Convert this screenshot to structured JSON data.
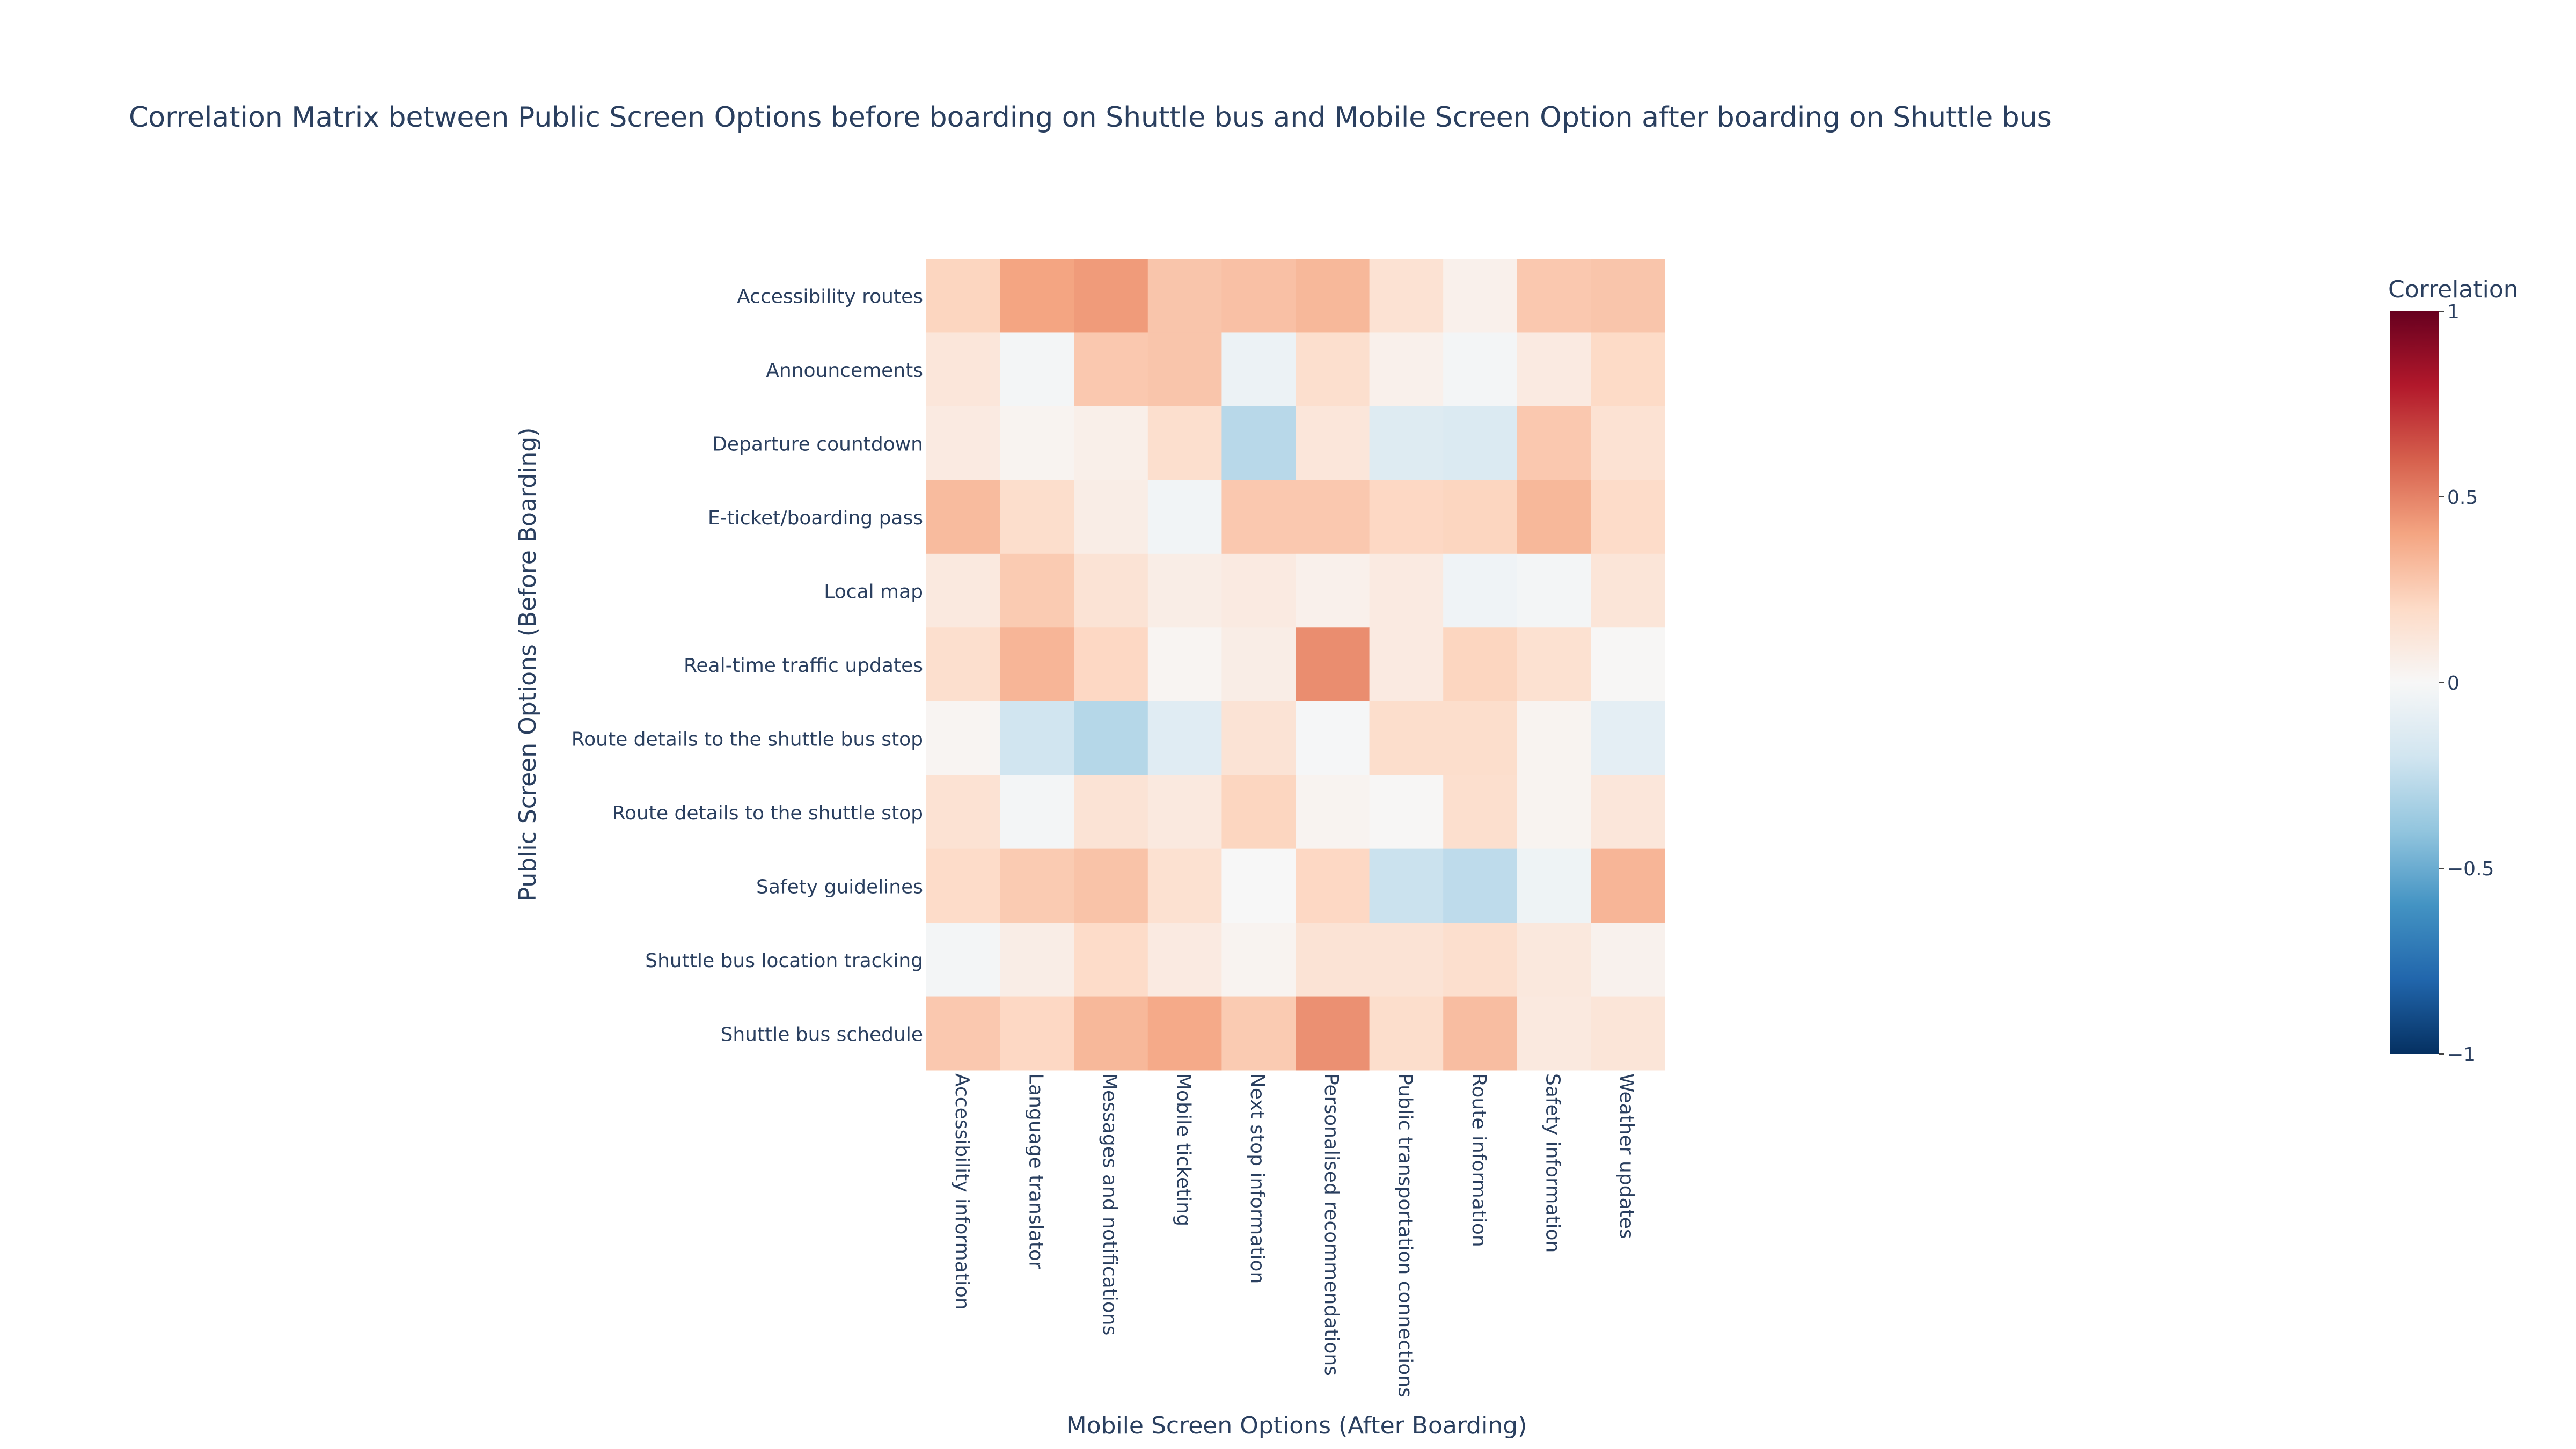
{
  "chart_data": {
    "type": "heatmap",
    "title": "Correlation Matrix between Public Screen Options before boarding on Shuttle bus and Mobile Screen Option after boarding on Shuttle bus",
    "xlabel": "Mobile Screen Options (After Boarding)",
    "ylabel": "Public Screen Options (Before Boarding)",
    "x_categories": [
      "Accessibility information",
      "Language translator",
      "Messages and notifications",
      "Mobile ticketing",
      "Next stop information",
      "Personalised recommendations",
      "Public transportation connections",
      "Route information",
      "Safety information",
      "Weather updates"
    ],
    "y_categories": [
      "Accessibility routes",
      "Announcements",
      "Departure countdown",
      "E-ticket/boarding pass",
      "Local map",
      "Real-time traffic updates",
      "Route details to the shuttle bus stop",
      "Route details to the shuttle stop",
      "Safety guidelines",
      "Shuttle bus location tracking",
      "Shuttle bus schedule"
    ],
    "values": [
      [
        0.22,
        0.4,
        0.43,
        0.28,
        0.3,
        0.33,
        0.15,
        0.05,
        0.27,
        0.28
      ],
      [
        0.12,
        -0.02,
        0.27,
        0.28,
        -0.06,
        0.17,
        0.05,
        -0.02,
        0.09,
        0.2
      ],
      [
        0.09,
        0.03,
        0.06,
        0.17,
        -0.28,
        0.12,
        -0.13,
        -0.15,
        0.27,
        0.15
      ],
      [
        0.32,
        0.18,
        0.07,
        -0.03,
        0.27,
        0.27,
        0.21,
        0.22,
        0.33,
        0.19
      ],
      [
        0.1,
        0.26,
        0.14,
        0.07,
        0.09,
        0.05,
        0.09,
        -0.04,
        -0.02,
        0.13
      ],
      [
        0.17,
        0.34,
        0.21,
        0.02,
        0.07,
        0.47,
        0.09,
        0.22,
        0.16,
        0.01
      ],
      [
        0.02,
        -0.2,
        -0.29,
        -0.12,
        0.14,
        -0.01,
        0.18,
        0.18,
        0.03,
        -0.1
      ],
      [
        0.15,
        -0.02,
        0.14,
        0.1,
        0.22,
        0.03,
        0.01,
        0.17,
        0.03,
        0.12
      ],
      [
        0.19,
        0.26,
        0.29,
        0.16,
        0.0,
        0.21,
        -0.22,
        -0.26,
        -0.05,
        0.34
      ],
      [
        -0.02,
        0.07,
        0.19,
        0.09,
        0.03,
        0.14,
        0.14,
        0.17,
        0.11,
        0.04
      ],
      [
        0.27,
        0.21,
        0.33,
        0.38,
        0.26,
        0.46,
        0.18,
        0.31,
        0.1,
        0.13
      ]
    ],
    "colorbar": {
      "title": "Correlation",
      "range": [
        -1,
        1
      ],
      "ticks": [
        {
          "value": 1,
          "label": "1"
        },
        {
          "value": 0.5,
          "label": "0.5"
        },
        {
          "value": 0,
          "label": "0"
        },
        {
          "value": -0.5,
          "label": "−0.5"
        },
        {
          "value": -1,
          "label": "−1"
        }
      ],
      "colorscale": [
        "#053061",
        "#2166ac",
        "#4393c3",
        "#92c5de",
        "#d1e5f0",
        "#f7f7f7",
        "#fddbc7",
        "#f4a582",
        "#d6604d",
        "#b2182b",
        "#67001f"
      ]
    }
  }
}
